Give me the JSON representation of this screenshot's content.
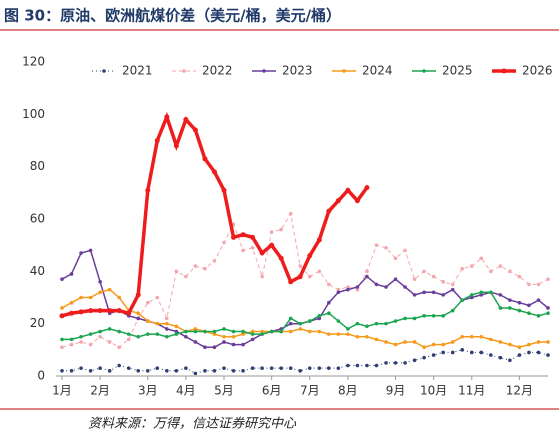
{
  "chart_data": {
    "type": "line",
    "title": "图 30：原油、欧洲航煤价差（美元/桶，美元/桶）",
    "source": "资料来源：万得，信达证券研究中心",
    "categories": [
      "1月",
      null,
      null,
      null,
      "2月",
      null,
      null,
      null,
      null,
      "3月",
      null,
      null,
      null,
      "4月",
      null,
      null,
      null,
      "5月",
      null,
      null,
      null,
      null,
      "6月",
      null,
      null,
      null,
      "7月",
      null,
      null,
      null,
      "8月",
      null,
      null,
      null,
      null,
      "9月",
      null,
      null,
      null,
      "10月",
      null,
      null,
      null,
      "11月",
      null,
      null,
      null,
      null,
      "12月",
      null,
      null,
      null
    ],
    "ylim": [
      0,
      120
    ],
    "yticks": [
      0,
      20,
      40,
      60,
      80,
      100,
      120
    ],
    "series": [
      {
        "name": "2021",
        "color": "#2f3f73",
        "dash": "dot",
        "width": 1,
        "values": [
          2,
          2,
          3,
          2,
          3,
          2,
          4,
          3,
          2,
          2,
          3,
          2,
          2,
          3,
          1,
          2,
          2,
          3,
          2,
          2,
          3,
          3,
          3,
          3,
          3,
          2,
          3,
          3,
          3,
          3,
          4,
          4,
          4,
          4,
          5,
          5,
          5,
          6,
          7,
          8,
          9,
          9,
          10,
          9,
          9,
          8,
          7,
          6,
          8,
          9,
          9,
          8
        ]
      },
      {
        "name": "2022",
        "color": "#f4a6ad",
        "dash": "dash",
        "width": 1,
        "values": [
          11,
          12,
          13,
          12,
          15,
          13,
          11,
          14,
          22,
          28,
          30,
          22,
          40,
          38,
          42,
          41,
          44,
          51,
          58,
          48,
          49,
          38,
          55,
          56,
          62,
          42,
          38,
          40,
          35,
          33,
          34,
          33,
          40,
          50,
          49,
          45,
          48,
          37,
          40,
          38,
          36,
          35,
          41,
          42,
          45,
          40,
          42,
          40,
          38,
          35,
          35,
          37
        ]
      },
      {
        "name": "2023",
        "color": "#6a3d9a",
        "dash": "solid",
        "width": 1.5,
        "values": [
          37,
          39,
          47,
          48,
          36,
          24,
          25,
          23,
          22,
          21,
          20,
          18,
          17,
          15,
          13,
          11,
          11,
          13,
          12,
          12,
          14,
          16,
          17,
          18,
          20,
          20,
          21,
          22,
          28,
          32,
          33,
          34,
          38,
          35,
          34,
          37,
          34,
          31,
          32,
          32,
          31,
          33,
          29,
          30,
          31,
          32,
          31,
          29,
          28,
          27,
          29,
          26
        ]
      },
      {
        "name": "2024",
        "color": "#f59a1b",
        "dash": "solid",
        "width": 1.5,
        "values": [
          26,
          28,
          30,
          30,
          32,
          33,
          30,
          25,
          24,
          21,
          20,
          20,
          19,
          17,
          18,
          17,
          16,
          15,
          15,
          16,
          17,
          17,
          17,
          17,
          17,
          18,
          17,
          17,
          16,
          16,
          16,
          15,
          15,
          14,
          13,
          12,
          13,
          13,
          11,
          12,
          12,
          13,
          15,
          15,
          15,
          14,
          13,
          12,
          11,
          12,
          13,
          13
        ]
      },
      {
        "name": "2025",
        "color": "#1aa650",
        "dash": "solid",
        "width": 1.5,
        "values": [
          14,
          14,
          15,
          16,
          17,
          18,
          17,
          16,
          15,
          16,
          16,
          15,
          16,
          17,
          17,
          17,
          17,
          18,
          17,
          17,
          16,
          16,
          17,
          17,
          22,
          20,
          21,
          23,
          24,
          21,
          18,
          20,
          19,
          20,
          20,
          21,
          22,
          22,
          23,
          23,
          23,
          25,
          29,
          31,
          32,
          32,
          26,
          26,
          25,
          24,
          23,
          24
        ]
      },
      {
        "name": "2026",
        "color": "#ee1c1c",
        "dash": "solid",
        "width": 3.5,
        "values": [
          23,
          24,
          24.5,
          25,
          25,
          25,
          25,
          24,
          31,
          71,
          90,
          99,
          88,
          98,
          94,
          83,
          78,
          71,
          53,
          54,
          53,
          47,
          50,
          45,
          36,
          38,
          46,
          52,
          63,
          67,
          71,
          67,
          72,
          null,
          null,
          null,
          null,
          null,
          null,
          null,
          null,
          null,
          null,
          null,
          null,
          null,
          null,
          null,
          null,
          null,
          null,
          null
        ]
      }
    ]
  }
}
